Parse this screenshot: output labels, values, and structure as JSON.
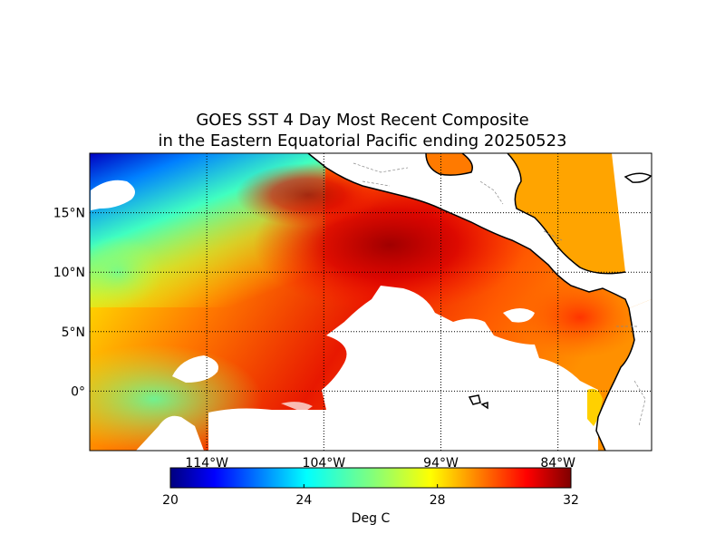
{
  "title_line1": "GOES SST 4 Day Most Recent Composite",
  "title_line2": "in the Eastern Equatorial Pacific ending 20250523",
  "map": {
    "lon_range": [
      -124,
      -76
    ],
    "lat_range": [
      -5,
      20
    ],
    "lon_ticks": [
      {
        "value": -114,
        "label": "114°W"
      },
      {
        "value": -104,
        "label": "104°W"
      },
      {
        "value": -94,
        "label": "94°W"
      },
      {
        "value": -84,
        "label": "84°W"
      }
    ],
    "lat_ticks": [
      {
        "value": 15,
        "label": "15°N"
      },
      {
        "value": 10,
        "label": "10°N"
      },
      {
        "value": 5,
        "label": "5°N"
      },
      {
        "value": 0,
        "label": "0°"
      }
    ],
    "grid": "dotted"
  },
  "colorbar": {
    "min": 20,
    "max": 32,
    "ticks": [
      "20",
      "24",
      "28",
      "32"
    ],
    "label": "Deg C",
    "colormap": "jet"
  }
}
